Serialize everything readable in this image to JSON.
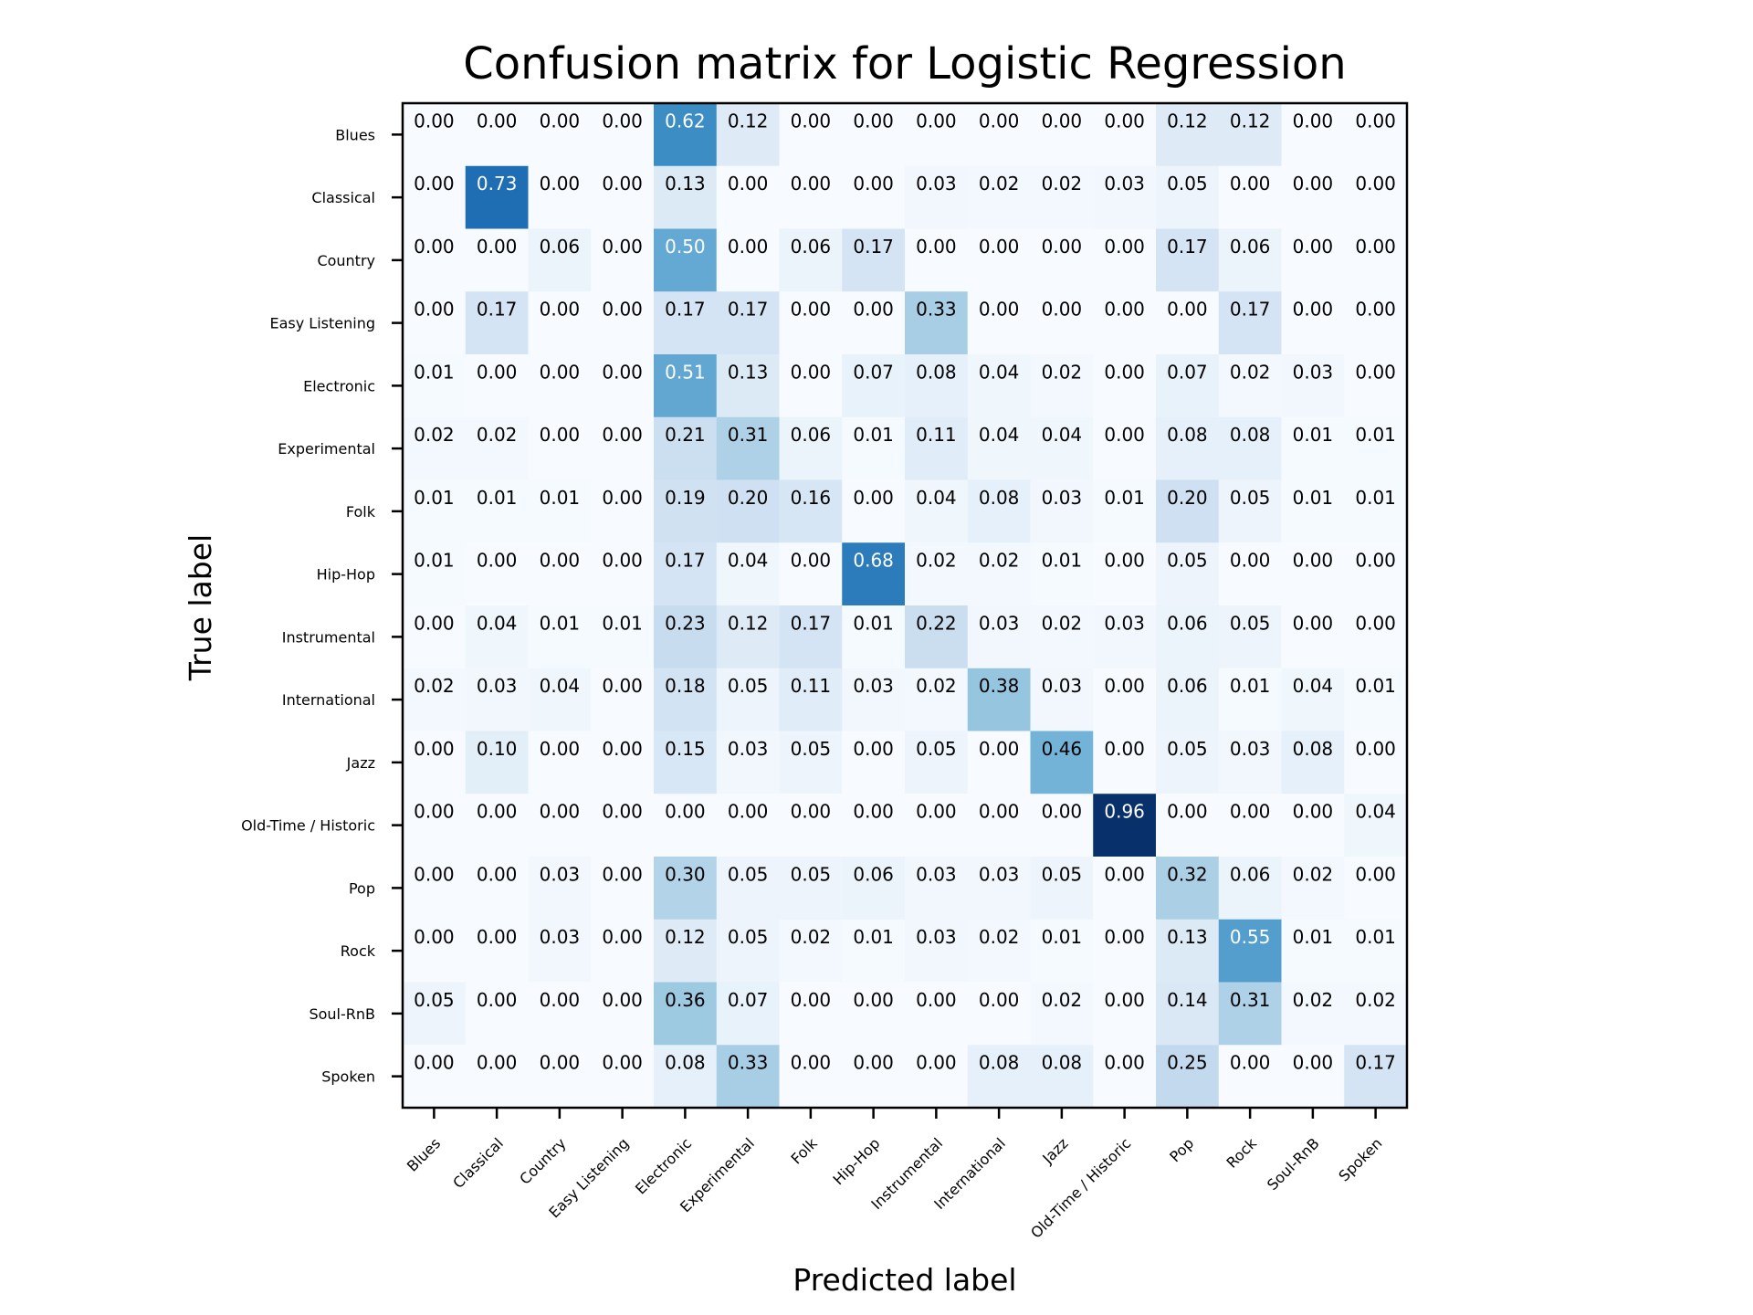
{
  "chart_data": {
    "type": "heatmap",
    "title": "Confusion matrix for Logistic Regression",
    "xlabel": "Predicted label",
    "ylabel": "True label",
    "colormap": "Blues",
    "value_range": [
      0,
      0.96
    ],
    "categories": [
      "Blues",
      "Classical",
      "Country",
      "Easy Listening",
      "Electronic",
      "Experimental",
      "Folk",
      "Hip-Hop",
      "Instrumental",
      "International",
      "Jazz",
      "Old-Time / Historic",
      "Pop",
      "Rock",
      "Soul-RnB",
      "Spoken"
    ],
    "matrix": [
      [
        0.0,
        0.0,
        0.0,
        0.0,
        0.62,
        0.12,
        0.0,
        0.0,
        0.0,
        0.0,
        0.0,
        0.0,
        0.12,
        0.12,
        0.0,
        0.0
      ],
      [
        0.0,
        0.73,
        0.0,
        0.0,
        0.13,
        0.0,
        0.0,
        0.0,
        0.03,
        0.02,
        0.02,
        0.03,
        0.05,
        0.0,
        0.0,
        0.0
      ],
      [
        0.0,
        0.0,
        0.06,
        0.0,
        0.5,
        0.0,
        0.06,
        0.17,
        0.0,
        0.0,
        0.0,
        0.0,
        0.17,
        0.06,
        0.0,
        0.0
      ],
      [
        0.0,
        0.17,
        0.0,
        0.0,
        0.17,
        0.17,
        0.0,
        0.0,
        0.33,
        0.0,
        0.0,
        0.0,
        0.0,
        0.17,
        0.0,
        0.0
      ],
      [
        0.01,
        0.0,
        0.0,
        0.0,
        0.51,
        0.13,
        0.0,
        0.07,
        0.08,
        0.04,
        0.02,
        0.0,
        0.07,
        0.02,
        0.03,
        0.0
      ],
      [
        0.02,
        0.02,
        0.0,
        0.0,
        0.21,
        0.31,
        0.06,
        0.01,
        0.11,
        0.04,
        0.04,
        0.0,
        0.08,
        0.08,
        0.01,
        0.01
      ],
      [
        0.01,
        0.01,
        0.01,
        0.0,
        0.19,
        0.2,
        0.16,
        0.0,
        0.04,
        0.08,
        0.03,
        0.01,
        0.2,
        0.05,
        0.01,
        0.01
      ],
      [
        0.01,
        0.0,
        0.0,
        0.0,
        0.17,
        0.04,
        0.0,
        0.68,
        0.02,
        0.02,
        0.01,
        0.0,
        0.05,
        0.0,
        0.0,
        0.0
      ],
      [
        0.0,
        0.04,
        0.01,
        0.01,
        0.23,
        0.12,
        0.17,
        0.01,
        0.22,
        0.03,
        0.02,
        0.03,
        0.06,
        0.05,
        0.0,
        0.0
      ],
      [
        0.02,
        0.03,
        0.04,
        0.0,
        0.18,
        0.05,
        0.11,
        0.03,
        0.02,
        0.38,
        0.03,
        0.0,
        0.06,
        0.01,
        0.04,
        0.01
      ],
      [
        0.0,
        0.1,
        0.0,
        0.0,
        0.15,
        0.03,
        0.05,
        0.0,
        0.05,
        0.0,
        0.46,
        0.0,
        0.05,
        0.03,
        0.08,
        0.0
      ],
      [
        0.0,
        0.0,
        0.0,
        0.0,
        0.0,
        0.0,
        0.0,
        0.0,
        0.0,
        0.0,
        0.0,
        0.96,
        0.0,
        0.0,
        0.0,
        0.04
      ],
      [
        0.0,
        0.0,
        0.03,
        0.0,
        0.3,
        0.05,
        0.05,
        0.06,
        0.03,
        0.03,
        0.05,
        0.0,
        0.32,
        0.06,
        0.02,
        0.0
      ],
      [
        0.0,
        0.0,
        0.03,
        0.0,
        0.12,
        0.05,
        0.02,
        0.01,
        0.03,
        0.02,
        0.01,
        0.0,
        0.13,
        0.55,
        0.01,
        0.01
      ],
      [
        0.05,
        0.0,
        0.0,
        0.0,
        0.36,
        0.07,
        0.0,
        0.0,
        0.0,
        0.0,
        0.02,
        0.0,
        0.14,
        0.31,
        0.02,
        0.02
      ],
      [
        0.0,
        0.0,
        0.0,
        0.0,
        0.08,
        0.33,
        0.0,
        0.0,
        0.0,
        0.08,
        0.08,
        0.0,
        0.25,
        0.0,
        0.0,
        0.17
      ]
    ]
  }
}
